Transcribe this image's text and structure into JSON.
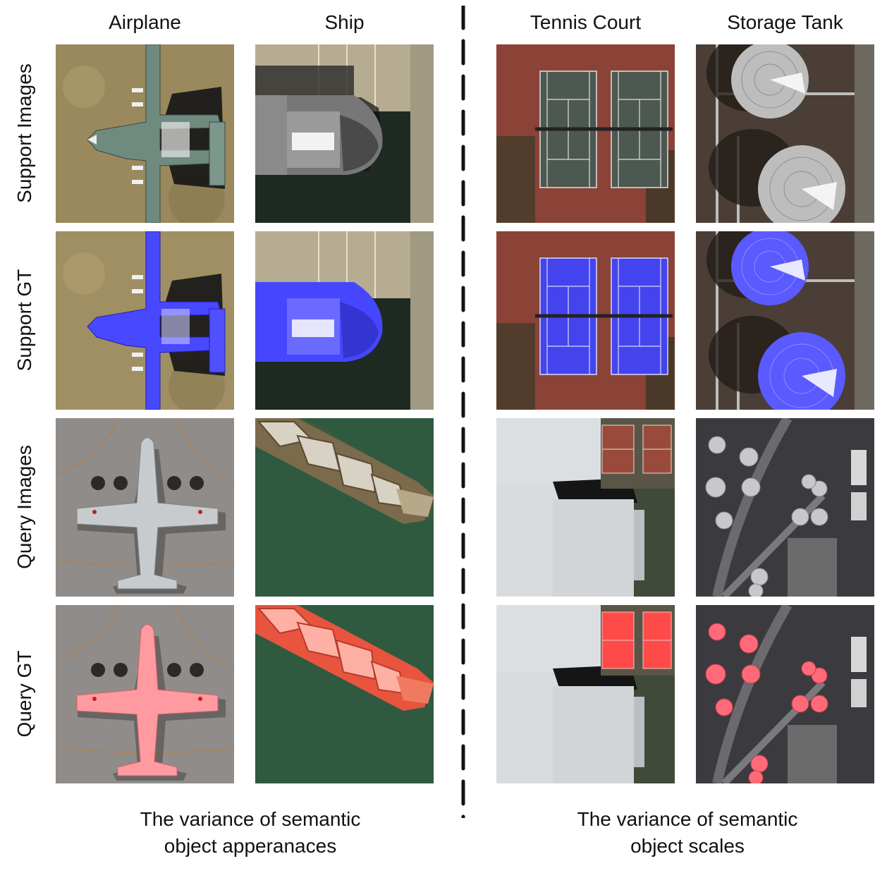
{
  "columns": [
    {
      "label": "Airplane",
      "group": "appearance"
    },
    {
      "label": "Ship",
      "group": "appearance"
    },
    {
      "label": "Tennis Court",
      "group": "scale"
    },
    {
      "label": "Storage Tank",
      "group": "scale"
    }
  ],
  "rows": [
    {
      "label": "Support Images",
      "kind": "image"
    },
    {
      "label": "Support GT",
      "kind": "mask",
      "mask_color": "#3c3cff"
    },
    {
      "label": "Query Images",
      "kind": "image"
    },
    {
      "label": "Query GT",
      "kind": "mask",
      "mask_color": "#ff4a4a"
    }
  ],
  "captions": {
    "left": {
      "line1": "The variance of semantic",
      "line2": "object apperanaces"
    },
    "right": {
      "line1": "The variance of semantic",
      "line2": "object scales"
    }
  },
  "colors": {
    "support_mask": "#3c3cff",
    "query_mask": "#ff4a4a",
    "divider": "#111111"
  }
}
